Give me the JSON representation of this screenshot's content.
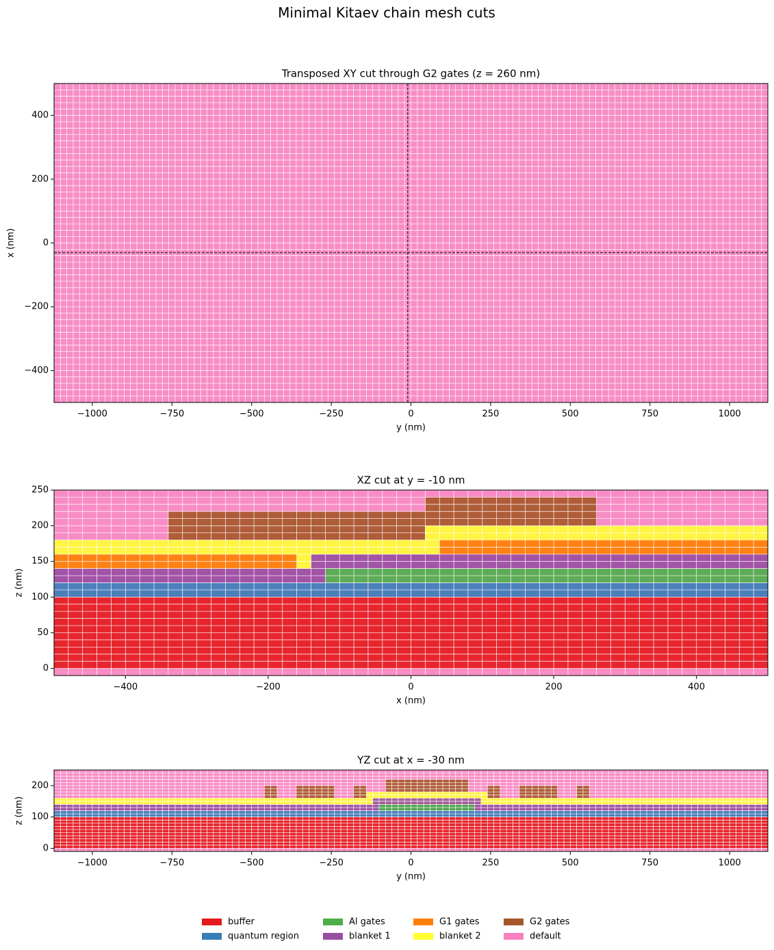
{
  "title": "Minimal Kitaev chain mesh cuts",
  "legend": [
    {
      "name": "buffer",
      "color": "#e41a1c"
    },
    {
      "name": "quantum region",
      "color": "#377eb8"
    },
    {
      "name": "Al gates",
      "color": "#4daf4a"
    },
    {
      "name": "blanket 1",
      "color": "#984ea3"
    },
    {
      "name": "G1 gates",
      "color": "#ff7f00"
    },
    {
      "name": "blanket 2",
      "color": "#ffff33"
    },
    {
      "name": "G2 gates",
      "color": "#a65628"
    },
    {
      "name": "default",
      "color": "#f781bf"
    }
  ],
  "chart_data": [
    {
      "type": "mesh",
      "title": "Transposed XY cut through G2 gates (z = 260 nm)",
      "xlabel": "y (nm)",
      "ylabel": "x (nm)",
      "xlim": [
        -1120,
        1120
      ],
      "ylim": [
        -500,
        500
      ],
      "xticks": [
        {
          "value": -1000,
          "label": "−1000"
        },
        {
          "value": -750,
          "label": "−750"
        },
        {
          "value": -500,
          "label": "−500"
        },
        {
          "value": -250,
          "label": "−250"
        },
        0,
        250,
        500,
        750,
        1000
      ],
      "yticks": [
        {
          "value": -400,
          "label": "−400"
        },
        {
          "value": -200,
          "label": "−200"
        },
        0,
        200,
        400
      ],
      "mesh": {
        "x": 20,
        "y": 20
      },
      "vline": -10,
      "hline": -30,
      "regions": [
        {
          "material": 7,
          "x": [
            -1120,
            1120
          ],
          "y": [
            -500,
            500
          ]
        }
      ]
    },
    {
      "type": "mesh",
      "title": "XZ cut at y = -10 nm",
      "xlabel": "x (nm)",
      "ylabel": "z (nm)",
      "xlim": [
        -500,
        500
      ],
      "ylim": [
        -10,
        250
      ],
      "xticks": [
        {
          "value": -400,
          "label": "−400"
        },
        {
          "value": -200,
          "label": "−200"
        },
        0,
        200,
        400
      ],
      "yticks": [
        0,
        50,
        100,
        150,
        200,
        250
      ],
      "mesh": {
        "x": 20,
        "y": 10
      },
      "regions": [
        {
          "material": 7,
          "x": [
            -500,
            500
          ],
          "y": [
            -10,
            250
          ]
        },
        {
          "material": 0,
          "x": [
            -500,
            500
          ],
          "y": [
            0,
            100
          ]
        },
        {
          "material": 1,
          "x": [
            -500,
            500
          ],
          "y": [
            100,
            120
          ]
        },
        {
          "material": 3,
          "x": [
            -500,
            -120
          ],
          "y": [
            120,
            140
          ]
        },
        {
          "material": 2,
          "x": [
            -120,
            500
          ],
          "y": [
            120,
            140
          ]
        },
        {
          "material": 4,
          "x": [
            -500,
            -160
          ],
          "y": [
            140,
            160
          ]
        },
        {
          "material": 5,
          "x": [
            -160,
            -140
          ],
          "y": [
            140,
            160
          ]
        },
        {
          "material": 3,
          "x": [
            -140,
            500
          ],
          "y": [
            140,
            160
          ]
        },
        {
          "material": 5,
          "x": [
            -500,
            40
          ],
          "y": [
            160,
            180
          ]
        },
        {
          "material": 4,
          "x": [
            40,
            500
          ],
          "y": [
            160,
            180
          ]
        },
        {
          "material": 5,
          "x": [
            20,
            500
          ],
          "y": [
            180,
            200
          ]
        },
        {
          "material": 6,
          "x": [
            -340,
            20
          ],
          "y": [
            180,
            220
          ]
        },
        {
          "material": 6,
          "x": [
            20,
            260
          ],
          "y": [
            200,
            240
          ]
        }
      ]
    },
    {
      "type": "mesh",
      "title": "YZ cut at x = -30 nm",
      "xlabel": "y (nm)",
      "ylabel": "z (nm)",
      "xlim": [
        -1120,
        1120
      ],
      "ylim": [
        -10,
        250
      ],
      "xticks": [
        {
          "value": -1000,
          "label": "−1000"
        },
        {
          "value": -750,
          "label": "−750"
        },
        {
          "value": -500,
          "label": "−500"
        },
        {
          "value": -250,
          "label": "−250"
        },
        0,
        250,
        500,
        750,
        1000
      ],
      "yticks": [
        0,
        100,
        200
      ],
      "mesh": {
        "x": 20,
        "y": 10
      },
      "regions": [
        {
          "material": 7,
          "x": [
            -1120,
            1120
          ],
          "y": [
            -10,
            250
          ]
        },
        {
          "material": 0,
          "x": [
            -1120,
            1120
          ],
          "y": [
            0,
            100
          ]
        },
        {
          "material": 1,
          "x": [
            -1120,
            1120
          ],
          "y": [
            100,
            120
          ]
        },
        {
          "material": 3,
          "x": [
            -1120,
            1120
          ],
          "y": [
            120,
            140
          ]
        },
        {
          "material": 2,
          "x": [
            -100,
            200
          ],
          "y": [
            120,
            140
          ]
        },
        {
          "material": 5,
          "x": [
            -1120,
            1120
          ],
          "y": [
            140,
            160
          ]
        },
        {
          "material": 3,
          "x": [
            -120,
            220
          ],
          "y": [
            140,
            160
          ]
        },
        {
          "material": 5,
          "x": [
            -140,
            240
          ],
          "y": [
            160,
            180
          ]
        },
        {
          "material": 6,
          "x": [
            -460,
            -420
          ],
          "y": [
            160,
            200
          ]
        },
        {
          "material": 6,
          "x": [
            -360,
            -240
          ],
          "y": [
            160,
            200
          ]
        },
        {
          "material": 6,
          "x": [
            -180,
            -140
          ],
          "y": [
            160,
            200
          ]
        },
        {
          "material": 6,
          "x": [
            240,
            280
          ],
          "y": [
            160,
            200
          ]
        },
        {
          "material": 6,
          "x": [
            340,
            460
          ],
          "y": [
            160,
            200
          ]
        },
        {
          "material": 6,
          "x": [
            520,
            560
          ],
          "y": [
            160,
            200
          ]
        },
        {
          "material": 6,
          "x": [
            -80,
            180
          ],
          "y": [
            180,
            220
          ]
        }
      ]
    }
  ]
}
